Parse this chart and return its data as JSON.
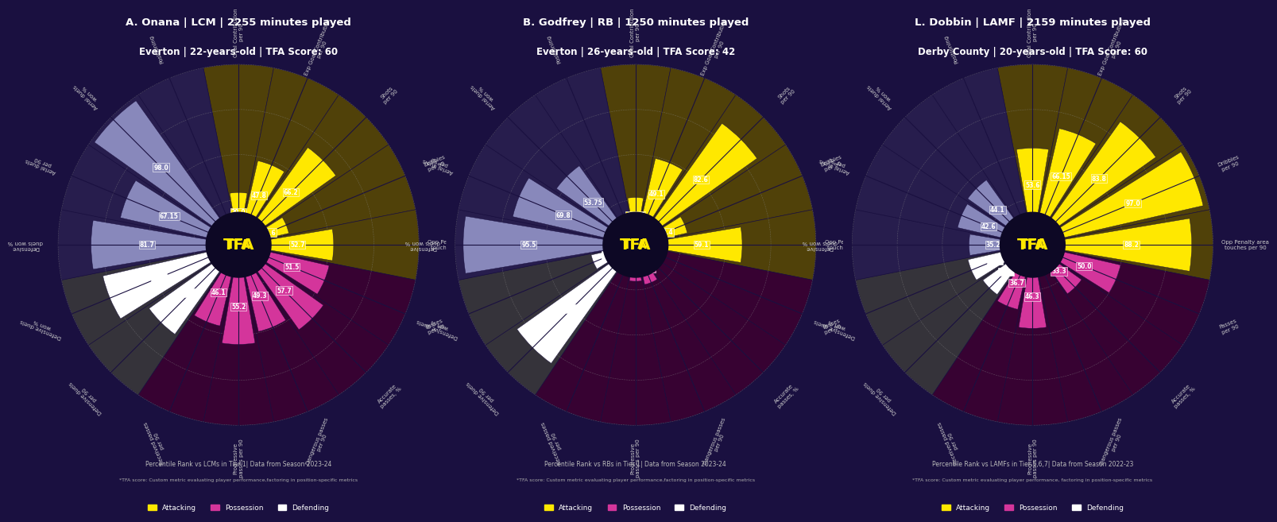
{
  "bg_color": "#1a1040",
  "players": [
    {
      "title_line1": "A. Onana | LCM | 2255 minutes played",
      "title_line2": "Everton | 22-years-old | TFA Score: 60",
      "legend_note": "Percentile Rank vs LCMs in Tier 1| Data from Season 2023-24",
      "footnote": "*TFA score: Custom metric evaluating player performance,factoring in position-specific metrics",
      "categories": [
        "Goal Contribution\nper 90",
        "Exp Goal Contribution\nper 90",
        "Shots\nper 90",
        "Dribbles\nper 90",
        "Opp Penalty area\ntouches per 90",
        "Passes\nper 90",
        "Accurate\npasses, %",
        "Dangerous passes\nper 90",
        "Progressive\npasses per 90",
        "Received passes\nper 90",
        "Defensive duels\nper 90",
        "Defensive duels\nwon %",
        "Defensive\nduels won %",
        "Aerial duels\nper 90",
        "Aerial duels\nwon %",
        "Positioning"
      ],
      "values": [
        29.0,
        47.8,
        66.2,
        28.6,
        52.7,
        51.5,
        57.7,
        49.3,
        55.2,
        46.1,
        60.8,
        77.1,
        81.7,
        67.15,
        98.0,
        0
      ],
      "colors": [
        "#b5a800",
        "#b5a800",
        "#b5a800",
        "#b5a800",
        "#b5a800",
        "#8b1a6b",
        "#8b1a6b",
        "#8b1a6b",
        "#8b1a6b",
        "#8b1a6b",
        "#ffffff",
        "#ffffff",
        "#6b6b9b",
        "#6b6b9b",
        "#6b6b9b",
        "#6b6b9b"
      ]
    },
    {
      "title_line1": "B. Godfrey | RB | 1250 minutes played",
      "title_line2": "Everton | 26-years-old | TFA Score: 42",
      "legend_note": "Percentile Rank vs RBs in Tier 1| Data from Season 2023-24",
      "footnote": "*TFA score: Custom metric evaluating player performance,factoring in position-specific metrics",
      "categories": [
        "Goal Contribution\nper 90",
        "Exp Goal Contribution\nper 90",
        "Shots\nper 90",
        "Dribbles\nper 90",
        "Opp Penalty area\ntouches per 90",
        "Passes\nper 90",
        "Accurate\npasses, %",
        "Dangerous passes\nper 90",
        "Progressive\npasses per 90",
        "Received passes\nper 90",
        "Defensive duels\nper 90",
        "Defensive duels\nwon %",
        "Defensive\nduels won %",
        "Aerial duels\nper 90",
        "Aerial duels\nwon %",
        "Positioning"
      ],
      "values": [
        26.25,
        49.1,
        82.6,
        29.4,
        59.1,
        4.4,
        5.1,
        22.57,
        20.2,
        4.1,
        80.6,
        25.2,
        95.5,
        69.8,
        53.75,
        0
      ],
      "colors": [
        "#b5a800",
        "#b5a800",
        "#b5a800",
        "#b5a800",
        "#b5a800",
        "#8b1a6b",
        "#8b1a6b",
        "#8b1a6b",
        "#8b1a6b",
        "#8b1a6b",
        "#ffffff",
        "#ffffff",
        "#6b6b9b",
        "#6b6b9b",
        "#6b6b9b",
        "#6b6b9b"
      ]
    },
    {
      "title_line1": "L. Dobbin | LAMF | 2159 minutes played",
      "title_line2": "Derby County | 20-years-old | TFA Score: 60",
      "legend_note": "Percentile Rank vs LAMFs in Tier 5,6,7| Data from Season 2022-23",
      "footnote": "*TFA score: Custom metric evaluating player performance, factoring in position-specific metrics",
      "categories": [
        "Goal Contribution\nper 90",
        "Exp Goal Contribution\nper 90",
        "Shots\nper 90",
        "Dribbles\nper 90",
        "Opp Penalty area\ntouches per 90",
        "Passes\nper 90",
        "Accurate\npasses, %",
        "Dangerous passes\nper 90",
        "Progressive\npasses per 90",
        "Received passes\nper 90",
        "Defensive duels\nper 90",
        "Defensive duels\nwon %",
        "Defensive\nduels won %",
        "Aerial duels\nper 90",
        "Aerial duels\nwon %",
        "Positioning"
      ],
      "values": [
        53.6,
        66.15,
        83.8,
        97.0,
        88.2,
        50.0,
        33.3,
        13.2,
        46.3,
        36.7,
        33.8,
        36.7,
        35.2,
        42.6,
        44.1,
        0
      ],
      "colors": [
        "#b5a800",
        "#b5a800",
        "#b5a800",
        "#b5a800",
        "#b5a800",
        "#8b1a6b",
        "#8b1a6b",
        "#8b1a6b",
        "#8b1a6b",
        "#8b1a6b",
        "#ffffff",
        "#ffffff",
        "#6b6b9b",
        "#6b6b9b",
        "#6b6b9b",
        "#6b6b9b"
      ]
    }
  ],
  "cat_labels": [
    "Goal Contribution\nper 90",
    "Exp Goal Contribution\nper 90",
    "Shots\nper 90",
    "Dribbles\nper 90",
    "Opp Penalty area\ntouches per 90",
    "Passes\nper 90",
    "Accurate\npasses, %",
    "Dangerous passes\nper 90",
    "Progressive\npasses per 90",
    "Received passes\nper 90",
    "Defensive duels\nper 90",
    "Defensive duels\nwon %",
    "Defensive\nduels won %",
    "Aerial duels\nper 90",
    "Aerial duels\nwon %",
    "Positioning"
  ],
  "cat_colors": [
    "#6b5a00",
    "#6b5a00",
    "#6b5a00",
    "#6b5a00",
    "#6b5a00",
    "#5a1050",
    "#5a1050",
    "#5a1050",
    "#5a1050",
    "#5a1050",
    "#4a4a4a",
    "#4a4a4a",
    "#4a4060",
    "#4a4060",
    "#4a4060",
    "#4a4060"
  ],
  "num_cats": 16,
  "max_val": 100,
  "grid_vals": [
    25,
    50,
    75,
    100
  ],
  "tfa_label": "TFA",
  "attack_color": "#ffe800",
  "possession_color": "#d4359b",
  "defending_color": "#ffffff",
  "title_color": "#ffffff",
  "label_color": "#cccccc",
  "value_label_color": "#ffffff",
  "grid_color": "#888888"
}
